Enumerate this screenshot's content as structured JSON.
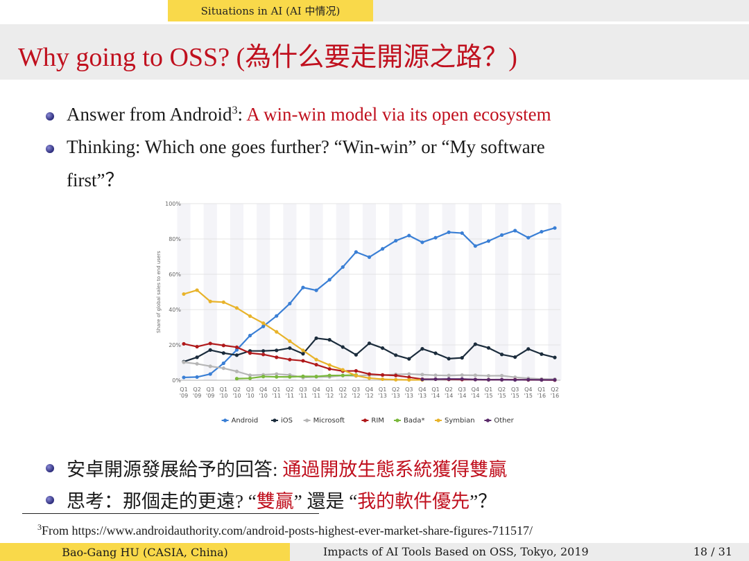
{
  "header": {
    "section": "Situations in AI (AI 中情况)"
  },
  "title": "Why going to OSS? (為什么要走開源之路？)",
  "bullets": [
    {
      "prefix": "Answer from Android",
      "sup": "3",
      "sep": ": ",
      "highlight": "A win-win model via its open ecosystem"
    },
    {
      "line1": "Thinking: Which one goes further? “Win-win” or “My software",
      "line2": "first”？"
    },
    {
      "prefix": "安卓開源發展給予的回答: ",
      "highlight": "通過開放生態系統獲得雙贏"
    },
    {
      "a": "思考：那個走的更遠? “",
      "b": "雙贏",
      "c": "” 還是 “",
      "d": "我的軟件優先",
      "e": "”？"
    }
  ],
  "footnote": {
    "mark": "3",
    "text": "From https://www.androidauthority.com/android-posts-highest-ever-market-share-figures-711517/"
  },
  "footer": {
    "left": "Bao-Gang HU (CASIA, China)",
    "center": "Impacts of AI Tools Based on OSS, Tokyo, 2019",
    "page": "18 / 31"
  },
  "colors": {
    "accent": "#c0101e",
    "bar": "#f9d94a"
  },
  "chart_data": {
    "type": "line",
    "ylabel": "Share of global sales to end users",
    "ylim": [
      0,
      100
    ],
    "yticks": [
      "0%",
      "20%",
      "40%",
      "60%",
      "80%",
      "100%"
    ],
    "categories": [
      "Q1 '09",
      "Q2 '09",
      "Q3 '09",
      "Q1 '10",
      "Q2 '10",
      "Q3 '10",
      "Q4 '10",
      "Q1 '11",
      "Q2 '11",
      "Q3 '11",
      "Q4 '11",
      "Q1 '12",
      "Q2 '12",
      "Q3 '12",
      "Q4 '12",
      "Q1 '13",
      "Q2 '13",
      "Q3 '13",
      "Q4 '13",
      "Q1 '14",
      "Q2 '14",
      "Q3 '14",
      "Q4 '14",
      "Q1 '15",
      "Q2 '15",
      "Q3 '15",
      "Q4 '15",
      "Q1 '16",
      "Q2 '16"
    ],
    "legend_position": "bottom",
    "grid": true,
    "series": [
      {
        "name": "Android",
        "color": "#3a7fd5",
        "values": [
          1.6,
          1.8,
          3.5,
          9.6,
          17.2,
          25.3,
          30.5,
          36.4,
          43.4,
          52.5,
          50.9,
          56.9,
          64.1,
          72.6,
          69.7,
          74.4,
          79.0,
          81.9,
          78.1,
          80.7,
          83.8,
          83.3,
          76.0,
          78.8,
          82.2,
          84.7,
          80.7,
          84.1,
          86.2
        ]
      },
      {
        "name": "iOS",
        "color": "#1b2c3c",
        "values": [
          10.5,
          13.0,
          17.1,
          15.4,
          14.2,
          16.6,
          16.6,
          16.9,
          18.2,
          15.0,
          23.8,
          22.9,
          18.8,
          14.4,
          20.9,
          18.2,
          14.2,
          12.1,
          17.8,
          15.3,
          12.2,
          12.7,
          20.4,
          18.3,
          14.6,
          13.1,
          17.7,
          14.8,
          12.9
        ]
      },
      {
        "name": "Microsoft",
        "color": "#b6b6b6",
        "values": [
          10.2,
          9.3,
          7.9,
          6.8,
          5.0,
          2.8,
          3.1,
          3.5,
          3.0,
          1.5,
          1.9,
          1.9,
          2.7,
          2.4,
          3.0,
          2.9,
          3.3,
          3.5,
          3.2,
          2.8,
          2.7,
          2.9,
          2.8,
          2.5,
          2.6,
          1.7,
          1.1,
          0.7,
          0.6
        ]
      },
      {
        "name": "RIM",
        "color": "#b0191b",
        "values": [
          20.6,
          19.0,
          20.8,
          19.7,
          18.7,
          15.4,
          14.6,
          13.0,
          11.7,
          11.0,
          8.8,
          6.4,
          5.2,
          5.3,
          3.5,
          3.0,
          2.7,
          1.7,
          0.6,
          0.6,
          0.5,
          0.4,
          0.4,
          0.3,
          0.3,
          0.3,
          0.2,
          0.2,
          0.1
        ]
      },
      {
        "name": "Bada*",
        "color": "#7ab83c",
        "values": [
          null,
          null,
          null,
          null,
          0.9,
          1.1,
          2.1,
          1.9,
          1.9,
          2.2,
          2.1,
          2.7,
          2.7,
          3.0,
          null,
          null,
          null,
          null,
          null,
          null,
          null,
          null,
          null,
          null,
          null,
          null,
          null,
          null,
          null
        ]
      },
      {
        "name": "Symbian",
        "color": "#e8b32a",
        "values": [
          48.8,
          51.0,
          44.6,
          44.2,
          40.9,
          36.3,
          32.3,
          27.4,
          22.1,
          16.9,
          11.7,
          8.6,
          5.9,
          2.6,
          1.2,
          0.6,
          0.3,
          0.2,
          0.2,
          null,
          null,
          null,
          null,
          null,
          null,
          null,
          null,
          null,
          null
        ]
      },
      {
        "name": "Other",
        "color": "#5a2a6a",
        "values": [
          null,
          null,
          null,
          null,
          null,
          null,
          null,
          null,
          null,
          null,
          null,
          null,
          null,
          null,
          null,
          null,
          null,
          null,
          0.5,
          0.6,
          0.7,
          0.7,
          0.4,
          0.3,
          0.3,
          0.2,
          0.3,
          0.2,
          0.2
        ]
      }
    ]
  }
}
